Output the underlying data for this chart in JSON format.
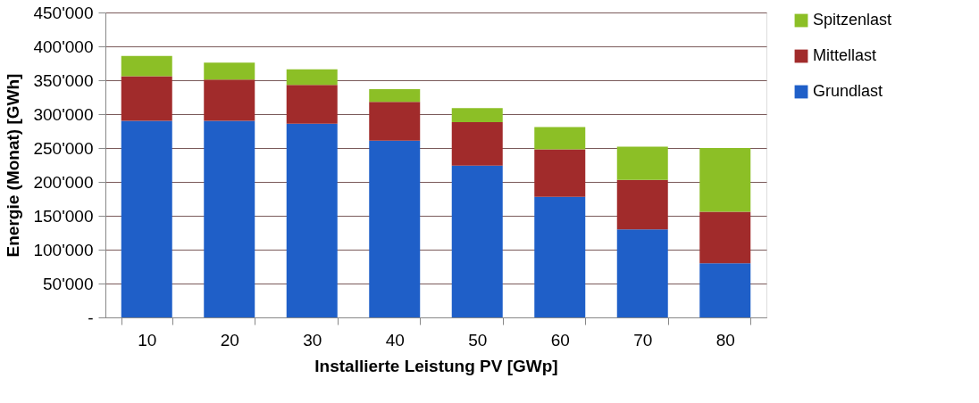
{
  "chart_data": {
    "type": "bar",
    "stacked": true,
    "xlabel": "Installierte Leistung PV [GWp]",
    "ylabel": "Energie (Monat) [GWh]",
    "categories": [
      "10",
      "20",
      "30",
      "40",
      "50",
      "60",
      "70",
      "80"
    ],
    "series": [
      {
        "name": "Grundlast",
        "color": "#1f5fc8",
        "values": [
          290000,
          290000,
          286000,
          261000,
          224000,
          178000,
          130000,
          80000
        ]
      },
      {
        "name": "Mittellast",
        "color": "#a12b2b",
        "values": [
          66000,
          61000,
          57000,
          57000,
          64000,
          70000,
          73000,
          76000
        ]
      },
      {
        "name": "Spitzenlast",
        "color": "#8cbf26",
        "values": [
          30000,
          25000,
          23000,
          19000,
          21000,
          33000,
          49000,
          94000
        ]
      }
    ],
    "ylim": [
      0,
      450000
    ],
    "yticks": [
      {
        "value": 0,
        "label": "-"
      },
      {
        "value": 50000,
        "label": "50'000"
      },
      {
        "value": 100000,
        "label": "100'000"
      },
      {
        "value": 150000,
        "label": "150'000"
      },
      {
        "value": 200000,
        "label": "200'000"
      },
      {
        "value": 250000,
        "label": "250'000"
      },
      {
        "value": 300000,
        "label": "300'000"
      },
      {
        "value": 350000,
        "label": "350'000"
      },
      {
        "value": 400000,
        "label": "400'000"
      },
      {
        "value": 450000,
        "label": "450'000"
      }
    ],
    "grid": "y",
    "legend": "right"
  }
}
